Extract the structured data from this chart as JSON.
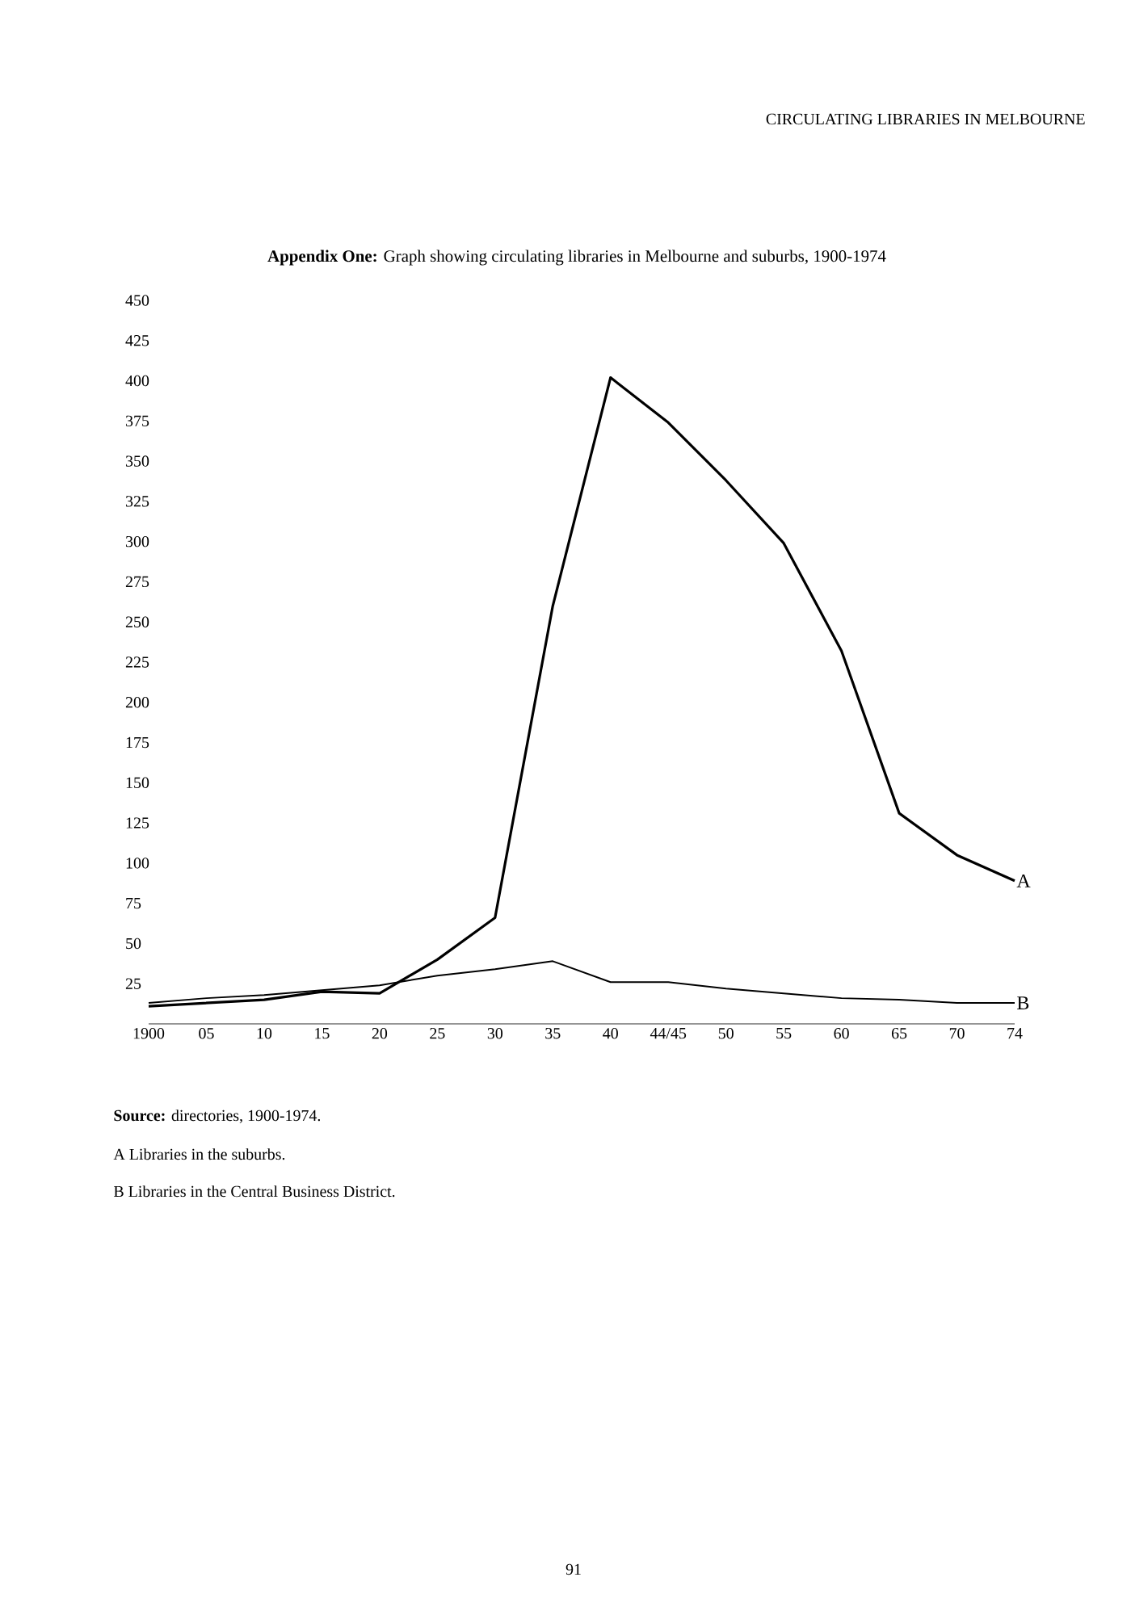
{
  "chart_data": {
    "type": "line",
    "title": "**Appendix One:** Graph showing circulating libraries in Melbourne and suburbs, 1900-1974",
    "categories": [
      "1900",
      "05",
      "10",
      "15",
      "20",
      "25",
      "30",
      "35",
      "40",
      "44/45",
      "50",
      "55",
      "60",
      "65",
      "70",
      "74"
    ],
    "series": [
      {
        "name": "A",
        "color": "#000000",
        "values": [
          11,
          13,
          15,
          20,
          19,
          40,
          66,
          260,
          402,
          374,
          338,
          299,
          232,
          131,
          105,
          89
        ]
      },
      {
        "name": "B",
        "color": "#000000",
        "values": [
          13,
          16,
          18,
          21,
          24,
          30,
          34,
          39,
          26,
          26,
          22,
          19,
          16,
          15,
          13,
          13
        ]
      }
    ],
    "ylim": [
      0,
      450
    ],
    "yticks": [
      25,
      50,
      75,
      100,
      125,
      150,
      175,
      200,
      225,
      250,
      275,
      300,
      325,
      350,
      375,
      400,
      425,
      450
    ],
    "annotations": [
      "CIRCULATING LIBRARIES IN MELBOURNE",
      "**Source:** directories, 1900-1974.",
      "A Libraries in the suburbs.",
      "B Libraries in the Central Business District.",
      "91"
    ]
  }
}
